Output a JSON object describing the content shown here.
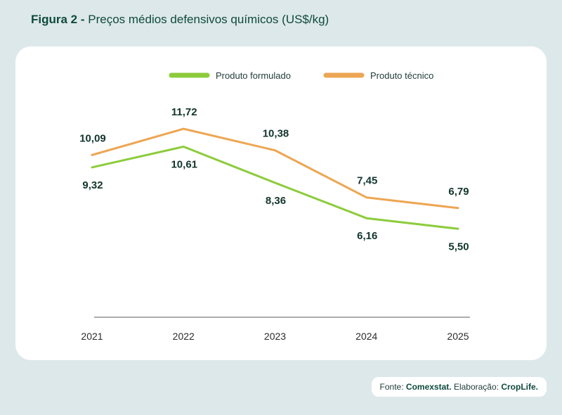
{
  "figure": {
    "label": "Figura 2 -",
    "title": "Preços médios defensivos químicos (US$/kg)"
  },
  "source": {
    "fonte_label": "Fonte:",
    "fonte_value": "Comexstat.",
    "elaboracao_label": "Elaboração:",
    "elaboracao_value": "CropLife."
  },
  "colors": {
    "background": "#dde8ea",
    "formulado": "#8ccc3c",
    "tecnico": "#eda653",
    "text_dark": "#12352d",
    "axis": "#5b5b5b"
  },
  "chart_data": {
    "type": "line",
    "title": "Preços médios defensivos químicos (US$/kg)",
    "x": [
      "2021",
      "2022",
      "2023",
      "2024",
      "2025"
    ],
    "xlabel": "",
    "ylabel": "",
    "ylim": [
      0,
      14
    ],
    "grid": false,
    "legend_position": "top",
    "series": [
      {
        "name": "Produto formulado",
        "color": "#8ccc3c",
        "values": [
          9.32,
          10.61,
          8.36,
          6.16,
          5.5
        ],
        "labels": [
          "9,32",
          "10,61",
          "8,36",
          "6,16",
          "5,50"
        ]
      },
      {
        "name": "Produto técnico",
        "color": "#eda653",
        "values": [
          10.09,
          11.72,
          10.38,
          7.45,
          6.79
        ],
        "labels": [
          "10,09",
          "11,72",
          "10,38",
          "7,45",
          "6,79"
        ]
      }
    ]
  }
}
